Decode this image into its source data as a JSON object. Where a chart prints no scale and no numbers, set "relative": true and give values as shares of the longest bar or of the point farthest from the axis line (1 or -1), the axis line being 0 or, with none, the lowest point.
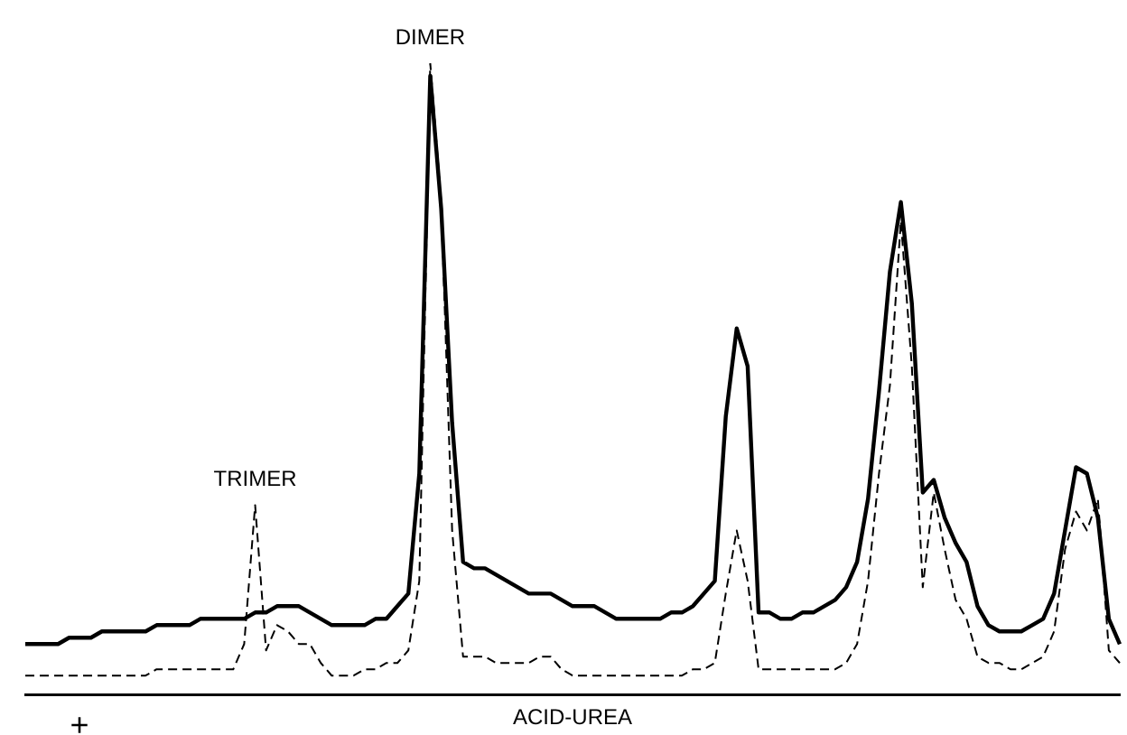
{
  "chart_data": {
    "type": "line",
    "relative": true,
    "xlabel": "ACID-UREA",
    "grid": false,
    "legend": false,
    "annotations": [
      {
        "text": "DIMER",
        "y": 1.0
      },
      {
        "text": "TRIMER",
        "y": 0.3
      },
      "+"
    ],
    "categories": [
      null,
      null,
      null,
      null,
      null,
      null,
      null,
      null,
      null,
      null,
      null,
      null,
      null,
      null,
      null,
      null,
      null,
      null,
      null,
      null,
      null,
      null,
      null,
      null,
      null,
      null,
      null,
      null,
      null,
      null,
      null,
      null,
      null,
      null,
      null,
      null,
      null,
      null,
      null,
      null,
      null,
      null,
      null,
      null,
      null,
      null,
      null,
      null,
      null,
      null,
      null,
      null,
      null,
      null,
      null,
      null,
      null,
      null,
      null,
      null,
      null,
      null,
      null,
      null,
      null,
      null,
      null,
      null,
      null,
      null,
      null,
      null,
      null,
      null,
      null,
      null,
      null,
      null,
      null,
      null,
      null,
      null,
      null,
      null,
      null,
      null,
      null,
      null,
      null,
      null,
      null,
      null,
      null,
      null,
      null,
      null,
      null,
      null,
      null,
      null,
      null
    ],
    "series": [
      {
        "color": "#000000",
        "line_style": "solid",
        "values": [
          0.08,
          0.08,
          0.08,
          0.08,
          0.09,
          0.09,
          0.09,
          0.1,
          0.1,
          0.1,
          0.1,
          0.1,
          0.11,
          0.11,
          0.11,
          0.11,
          0.12,
          0.12,
          0.12,
          0.12,
          0.12,
          0.13,
          0.13,
          0.14,
          0.14,
          0.14,
          0.13,
          0.12,
          0.11,
          0.11,
          0.11,
          0.11,
          0.12,
          0.12,
          0.14,
          0.16,
          0.35,
          0.98,
          0.77,
          0.43,
          0.21,
          0.2,
          0.2,
          0.19,
          0.18,
          0.17,
          0.16,
          0.16,
          0.16,
          0.15,
          0.14,
          0.14,
          0.14,
          0.13,
          0.12,
          0.12,
          0.12,
          0.12,
          0.12,
          0.13,
          0.13,
          0.14,
          0.16,
          0.18,
          0.44,
          0.58,
          0.52,
          0.13,
          0.13,
          0.12,
          0.12,
          0.13,
          0.13,
          0.14,
          0.15,
          0.17,
          0.21,
          0.31,
          0.48,
          0.67,
          0.78,
          0.62,
          0.32,
          0.34,
          0.28,
          0.24,
          0.21,
          0.14,
          0.11,
          0.1,
          0.1,
          0.1,
          0.11,
          0.12,
          0.16,
          0.26,
          0.36,
          0.35,
          0.28,
          0.12,
          0.08
        ]
      },
      {
        "color": "#000000",
        "line_style": "dashed",
        "values": [
          0.03,
          0.03,
          0.03,
          0.03,
          0.03,
          0.03,
          0.03,
          0.03,
          0.03,
          0.03,
          0.03,
          0.03,
          0.04,
          0.04,
          0.04,
          0.04,
          0.04,
          0.04,
          0.04,
          0.04,
          0.08,
          0.3,
          0.07,
          0.11,
          0.1,
          0.08,
          0.08,
          0.05,
          0.03,
          0.03,
          0.03,
          0.04,
          0.04,
          0.05,
          0.05,
          0.07,
          0.18,
          1.0,
          0.78,
          0.26,
          0.06,
          0.06,
          0.06,
          0.05,
          0.05,
          0.05,
          0.05,
          0.06,
          0.06,
          0.04,
          0.03,
          0.03,
          0.03,
          0.03,
          0.03,
          0.03,
          0.03,
          0.03,
          0.03,
          0.03,
          0.03,
          0.04,
          0.04,
          0.05,
          0.16,
          0.26,
          0.18,
          0.04,
          0.04,
          0.04,
          0.04,
          0.04,
          0.04,
          0.04,
          0.04,
          0.05,
          0.08,
          0.18,
          0.35,
          0.49,
          0.75,
          0.52,
          0.17,
          0.32,
          0.23,
          0.15,
          0.12,
          0.06,
          0.05,
          0.05,
          0.04,
          0.04,
          0.05,
          0.06,
          0.1,
          0.23,
          0.29,
          0.26,
          0.31,
          0.07,
          0.05
        ]
      }
    ]
  }
}
